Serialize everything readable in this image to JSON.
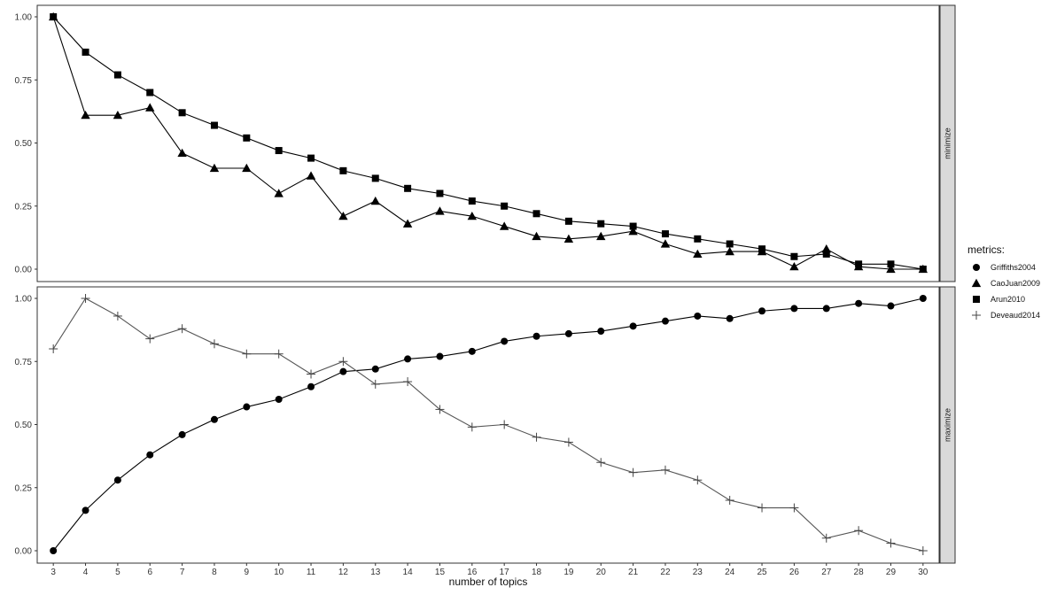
{
  "chart_data": {
    "type": "line",
    "xlabel": "number of topics",
    "x": [
      3,
      4,
      5,
      6,
      7,
      8,
      9,
      10,
      11,
      12,
      13,
      14,
      15,
      16,
      17,
      18,
      19,
      20,
      21,
      22,
      23,
      24,
      25,
      26,
      27,
      28,
      29,
      30
    ],
    "xlim": [
      2.5,
      30.5
    ],
    "ylim": [
      0,
      1
    ],
    "yticks": [
      0,
      0.25,
      0.5,
      0.75,
      1.0
    ],
    "ytick_labels": [
      "0.00",
      "0.25",
      "0.50",
      "0.75",
      "1.00"
    ],
    "grid": "vertical major lines at each x",
    "legend": {
      "title": "metrics:",
      "placement": "right",
      "entries": [
        {
          "name": "Griffiths2004",
          "marker": "circle"
        },
        {
          "name": "CaoJuan2009",
          "marker": "triangle"
        },
        {
          "name": "Arun2010",
          "marker": "square"
        },
        {
          "name": "Deveaud2014",
          "marker": "plus"
        }
      ]
    },
    "panels": [
      {
        "strip_label": "minimize",
        "series": [
          {
            "name": "CaoJuan2009",
            "marker": "triangle",
            "values": [
              1.0,
              0.61,
              0.61,
              0.64,
              0.46,
              0.4,
              0.4,
              0.3,
              0.37,
              0.21,
              0.27,
              0.18,
              0.23,
              0.21,
              0.17,
              0.13,
              0.12,
              0.13,
              0.15,
              0.1,
              0.06,
              0.07,
              0.07,
              0.01,
              0.08,
              0.01,
              0.0,
              0.0
            ]
          },
          {
            "name": "Arun2010",
            "marker": "square",
            "values": [
              1.0,
              0.86,
              0.77,
              0.7,
              0.62,
              0.57,
              0.52,
              0.47,
              0.44,
              0.39,
              0.36,
              0.32,
              0.3,
              0.27,
              0.25,
              0.22,
              0.19,
              0.18,
              0.17,
              0.14,
              0.12,
              0.1,
              0.08,
              0.05,
              0.06,
              0.02,
              0.02,
              0.0
            ]
          }
        ]
      },
      {
        "strip_label": "maximize",
        "series": [
          {
            "name": "Griffiths2004",
            "marker": "circle",
            "values": [
              0.0,
              0.16,
              0.28,
              0.38,
              0.46,
              0.52,
              0.57,
              0.6,
              0.65,
              0.71,
              0.72,
              0.76,
              0.77,
              0.79,
              0.83,
              0.85,
              0.86,
              0.87,
              0.89,
              0.91,
              0.93,
              0.92,
              0.95,
              0.96,
              0.96,
              0.98,
              0.97,
              1.0
            ]
          },
          {
            "name": "Deveaud2014",
            "marker": "plus",
            "values": [
              0.8,
              1.0,
              0.93,
              0.84,
              0.88,
              0.82,
              0.78,
              0.78,
              0.7,
              0.75,
              0.66,
              0.67,
              0.56,
              0.49,
              0.5,
              0.45,
              0.43,
              0.35,
              0.31,
              0.32,
              0.28,
              0.2,
              0.17,
              0.17,
              0.05,
              0.08,
              0.03,
              0.0
            ]
          }
        ]
      }
    ]
  }
}
